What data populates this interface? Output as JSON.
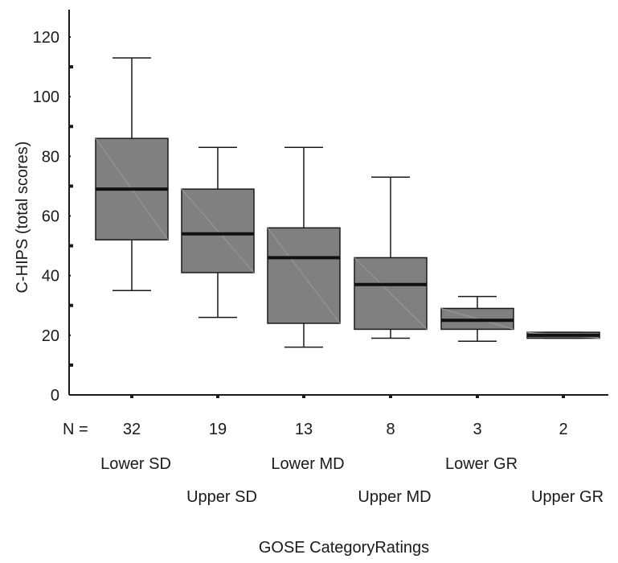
{
  "chart_data": {
    "type": "boxplot",
    "xlabel": "GOSE CategoryRatings",
    "ylabel": "C-HIPS (total scores)",
    "ylim": [
      0,
      125
    ],
    "yticks": [
      0,
      20,
      40,
      60,
      80,
      100,
      120
    ],
    "n_prefix": "N =",
    "box_color": "#808080",
    "categories": [
      "Lower SD",
      "Upper SD",
      "Lower MD",
      "Upper MD",
      "Lower GR",
      "Upper GR"
    ],
    "n": [
      "32",
      "19",
      "13",
      "8",
      "3",
      "2"
    ],
    "boxes": [
      {
        "min": 35,
        "q1": 52,
        "median": 69,
        "q3": 86,
        "max": 113
      },
      {
        "min": 26,
        "q1": 41,
        "median": 54,
        "q3": 69,
        "max": 83
      },
      {
        "min": 16,
        "q1": 24,
        "median": 46,
        "q3": 56,
        "max": 83
      },
      {
        "min": 19,
        "q1": 22,
        "median": 37,
        "q3": 46,
        "max": 73
      },
      {
        "min": 18,
        "q1": 22,
        "median": 25,
        "q3": 29,
        "max": 33
      },
      {
        "min": 19,
        "q1": 19,
        "median": 20,
        "q3": 21,
        "max": 21
      }
    ]
  }
}
